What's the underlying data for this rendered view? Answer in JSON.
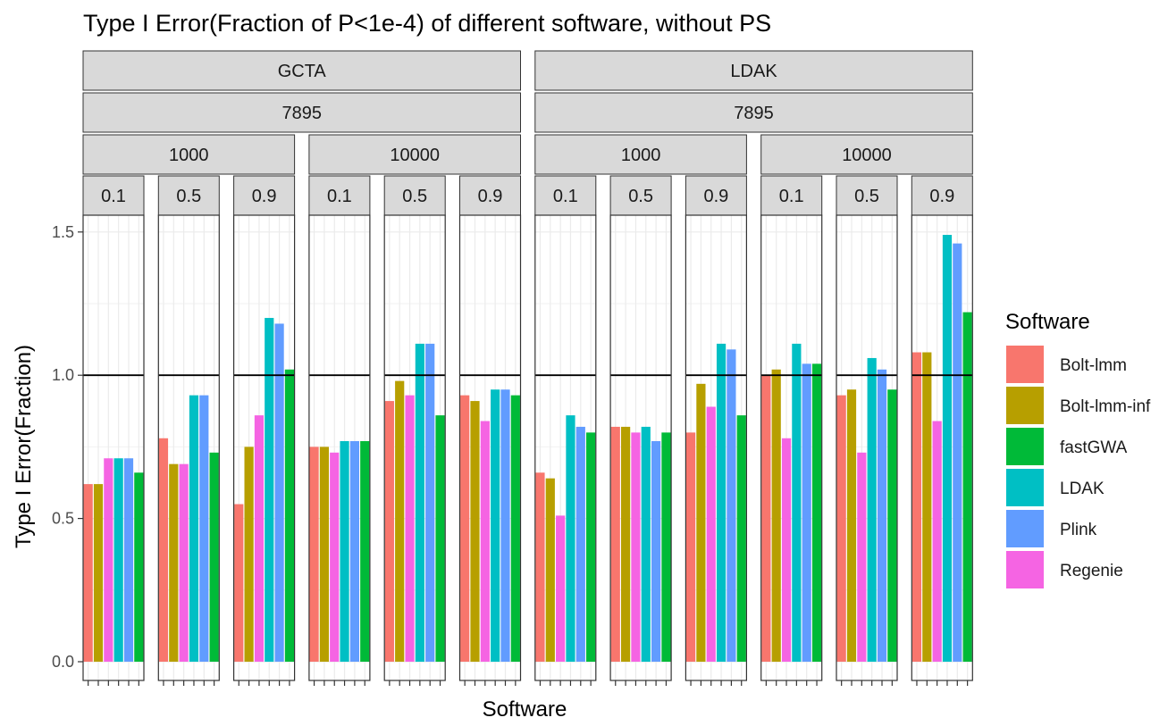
{
  "chart_data": {
    "type": "bar",
    "title": "Type I Error(Fraction of P<1e-4) of different software, without PS",
    "xlabel": "Software",
    "ylabel": "Type I Error(Fraction)",
    "ylim": [
      0,
      1.6
    ],
    "yticks": [
      0.0,
      0.5,
      1.0,
      1.5
    ],
    "ytick_labels": [
      "0.0",
      "0.5",
      "1.0",
      "1.5"
    ],
    "reference_line": 1.0,
    "grid": true,
    "legend_position": "right",
    "legend": {
      "title": "Software",
      "entries": [
        {
          "name": "Bolt-lmm",
          "color": "#F8766D"
        },
        {
          "name": "Bolt-lmm-inf",
          "color": "#B79F00"
        },
        {
          "name": "fastGWA",
          "color": "#00BA38"
        },
        {
          "name": "LDAK",
          "color": "#00BFC4"
        },
        {
          "name": "Plink",
          "color": "#619CFF"
        },
        {
          "name": "Regenie",
          "color": "#F564E3"
        }
      ]
    },
    "categories": [
      "Bolt-lmm",
      "Bolt-lmm-inf",
      "Regenie",
      "LDAK",
      "Plink",
      "fastGWA"
    ],
    "groups": [
      {
        "label": "GCTA",
        "sub_label": "7895",
        "subgroups": [
          {
            "label": "1000",
            "panels": [
              {
                "label": "0.1",
                "values": [
                  0.62,
                  0.62,
                  0.71,
                  0.71,
                  0.71,
                  0.66
                ]
              },
              {
                "label": "0.5",
                "values": [
                  0.78,
                  0.69,
                  0.69,
                  0.93,
                  0.93,
                  0.73
                ]
              },
              {
                "label": "0.9",
                "values": [
                  0.55,
                  0.75,
                  0.86,
                  1.2,
                  1.18,
                  1.02
                ]
              }
            ]
          },
          {
            "label": "10000",
            "panels": [
              {
                "label": "0.1",
                "values": [
                  0.75,
                  0.75,
                  0.73,
                  0.77,
                  0.77,
                  0.77
                ]
              },
              {
                "label": "0.5",
                "values": [
                  0.91,
                  0.98,
                  0.93,
                  1.11,
                  1.11,
                  0.86
                ]
              },
              {
                "label": "0.9",
                "values": [
                  0.93,
                  0.91,
                  0.84,
                  0.95,
                  0.95,
                  0.93
                ]
              }
            ]
          }
        ]
      },
      {
        "label": "LDAK",
        "sub_label": "7895",
        "subgroups": [
          {
            "label": "1000",
            "panels": [
              {
                "label": "0.1",
                "values": [
                  0.66,
                  0.64,
                  0.51,
                  0.86,
                  0.82,
                  0.8
                ]
              },
              {
                "label": "0.5",
                "values": [
                  0.82,
                  0.82,
                  0.8,
                  0.82,
                  0.77,
                  0.8
                ]
              },
              {
                "label": "0.9",
                "values": [
                  0.8,
                  0.97,
                  0.89,
                  1.11,
                  1.09,
                  0.86
                ]
              }
            ]
          },
          {
            "label": "10000",
            "panels": [
              {
                "label": "0.1",
                "values": [
                  1.0,
                  1.02,
                  0.78,
                  1.11,
                  1.04,
                  1.04
                ]
              },
              {
                "label": "0.5",
                "values": [
                  0.93,
                  0.95,
                  0.73,
                  1.06,
                  1.02,
                  0.95
                ]
              },
              {
                "label": "0.9",
                "values": [
                  1.08,
                  1.08,
                  0.84,
                  1.49,
                  1.46,
                  1.22
                ]
              }
            ]
          }
        ]
      }
    ]
  }
}
